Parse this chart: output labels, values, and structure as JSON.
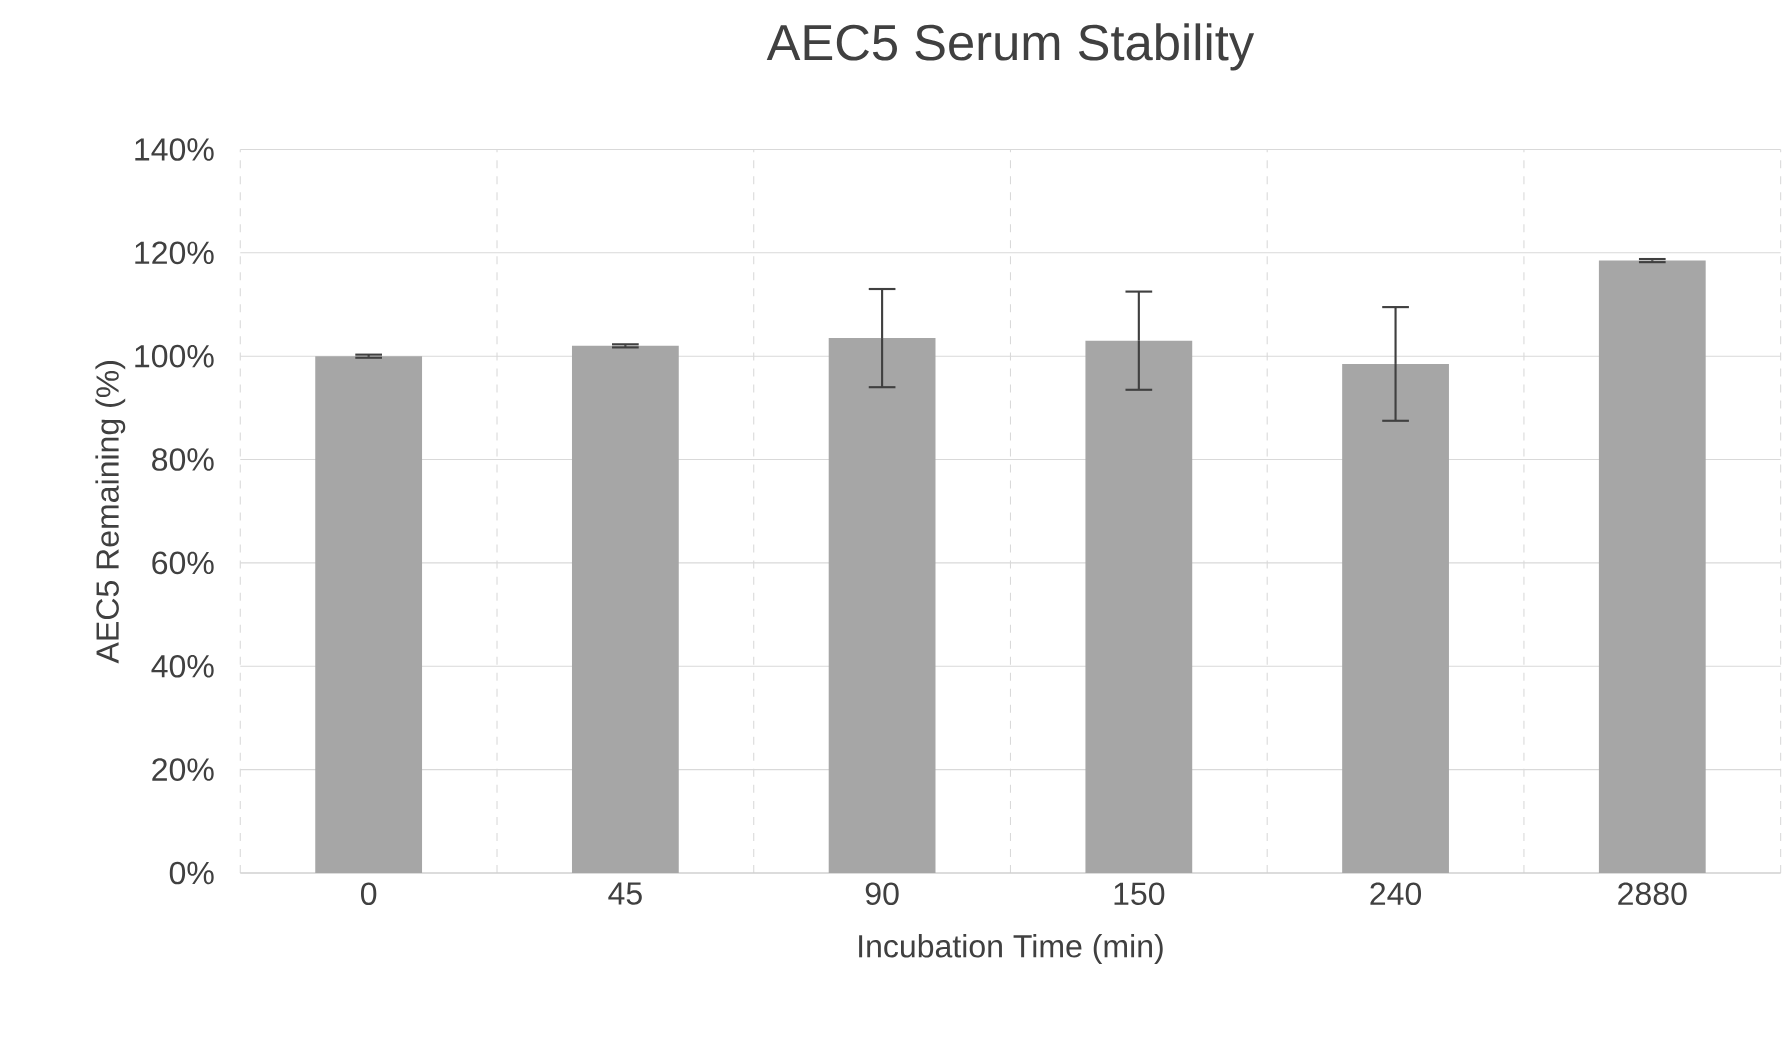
{
  "chart_data": {
    "type": "bar",
    "title": "AEC5 Serum Stability",
    "xlabel": "Incubation Time (min)",
    "ylabel": "AEC5 Remaining (%)",
    "categories": [
      "0",
      "45",
      "90",
      "150",
      "240",
      "2880"
    ],
    "values": [
      100,
      102,
      103.5,
      103,
      98.5,
      118.5
    ],
    "errors": [
      0.3,
      0.3,
      9.5,
      9.5,
      11,
      0.3
    ],
    "color": "#a6a6a6",
    "ylim": [
      0,
      140
    ],
    "yticks": [
      {
        "value": 0,
        "label": "0%"
      },
      {
        "value": 20,
        "label": "20%"
      },
      {
        "value": 40,
        "label": "40%"
      },
      {
        "value": 60,
        "label": "60%"
      },
      {
        "value": 80,
        "label": "80%"
      },
      {
        "value": 100,
        "label": "100%"
      },
      {
        "value": 120,
        "label": "120%"
      },
      {
        "value": 140,
        "label": "140%"
      }
    ],
    "grid": true
  }
}
